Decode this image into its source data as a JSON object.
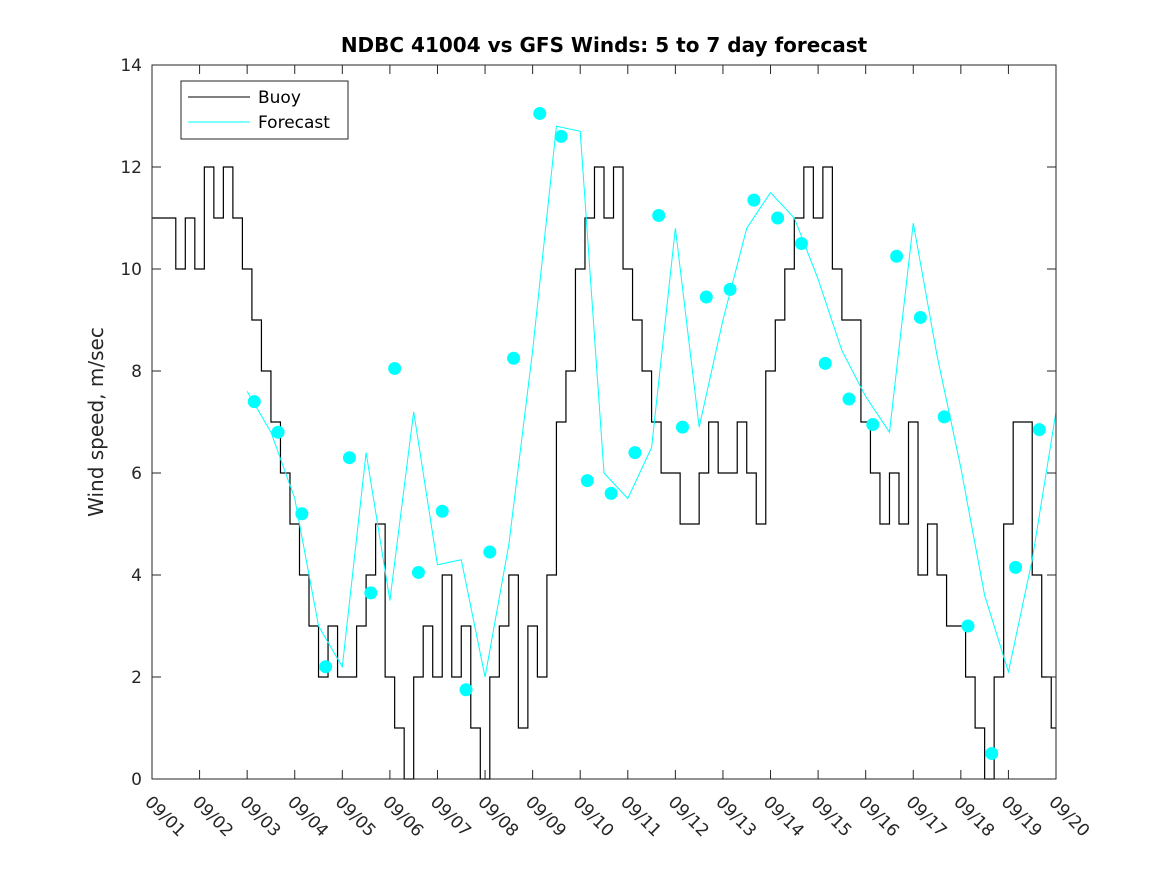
{
  "chart_data": {
    "type": "line",
    "title": "NDBC 41004 vs GFS Winds: 5 to 7 day forecast",
    "xlabel": "",
    "ylabel": "Wind speed, m/sec",
    "ylim": [
      0,
      14
    ],
    "yticks": [
      0,
      2,
      4,
      6,
      8,
      10,
      12,
      14
    ],
    "xlim": [
      0,
      19
    ],
    "xtick_labels": [
      "09/01",
      "09/02",
      "09/03",
      "09/04",
      "09/05",
      "09/06",
      "09/07",
      "09/08",
      "09/09",
      "09/10",
      "09/11",
      "09/12",
      "09/13",
      "09/14",
      "09/15",
      "09/16",
      "09/17",
      "09/18",
      "09/19",
      "09/20"
    ],
    "legend": {
      "location": "top-left",
      "entries": [
        "Buoy",
        "Forecast"
      ]
    },
    "colors": {
      "buoy": "#000000",
      "forecast": "#00FFFF",
      "markers": "#00FFFF"
    },
    "series": [
      {
        "name": "Buoy",
        "x": [
          0.0,
          0.1,
          0.3,
          0.5,
          0.7,
          0.9,
          1.1,
          1.3,
          1.5,
          1.7,
          1.9,
          2.1,
          2.3,
          2.5,
          2.7,
          2.9,
          3.1,
          3.3,
          3.5,
          3.7,
          3.9,
          4.1,
          4.3,
          4.5,
          4.7,
          4.9,
          5.1,
          5.3,
          5.5,
          5.7,
          5.9,
          6.1,
          6.3,
          6.5,
          6.7,
          6.9,
          7.1,
          7.3,
          7.5,
          7.7,
          7.9,
          8.1,
          8.3,
          8.5,
          8.7,
          8.9,
          9.1,
          9.3,
          9.5,
          9.7,
          9.9,
          10.1,
          10.3,
          10.5,
          10.7,
          10.9,
          11.1,
          11.3,
          11.5,
          11.7,
          11.9,
          12.1,
          12.3,
          12.5,
          12.7,
          12.9,
          13.1,
          13.3,
          13.5,
          13.7,
          13.9,
          14.1,
          14.3,
          14.5,
          14.7,
          14.9,
          15.1,
          15.3,
          15.5,
          15.7,
          15.9,
          16.1,
          16.3,
          16.5,
          16.7,
          16.9,
          17.1,
          17.3,
          17.5,
          17.7,
          17.9,
          18.1,
          18.3,
          18.5,
          18.7,
          18.9
        ],
        "values": [
          11,
          11,
          11,
          10,
          11,
          10,
          12,
          11,
          12,
          11,
          10,
          9,
          8,
          7,
          6,
          5,
          4,
          3,
          2,
          3,
          2,
          2,
          3,
          4,
          5,
          2,
          1,
          0,
          2,
          3,
          2,
          4,
          2,
          3,
          1,
          0,
          2,
          3,
          4,
          1,
          3,
          2,
          4,
          7,
          8,
          10,
          11,
          12,
          11,
          12,
          10,
          9,
          8,
          7,
          6,
          6,
          5,
          5,
          6,
          7,
          6,
          6,
          7,
          6,
          5,
          8,
          9,
          10,
          11,
          12,
          11,
          12,
          10,
          9,
          9,
          7,
          6,
          5,
          6,
          5,
          7,
          4,
          5,
          4,
          3,
          3,
          2,
          1,
          0,
          2,
          5,
          7,
          7,
          4,
          2,
          1
        ]
      },
      {
        "name": "Forecast",
        "x": [
          2.0,
          2.5,
          3.0,
          3.5,
          4.0,
          4.5,
          5.0,
          5.5,
          6.0,
          6.5,
          7.0,
          7.5,
          8.0,
          8.5,
          9.0,
          9.5,
          10.0,
          10.5,
          11.0,
          11.5,
          12.0,
          12.5,
          13.0,
          13.5,
          14.0,
          14.5,
          15.0,
          15.5,
          16.0,
          16.5,
          17.0,
          17.5,
          18.0,
          18.5,
          19.0
        ],
        "values": [
          7.6,
          6.8,
          5.5,
          3.0,
          2.2,
          6.4,
          3.5,
          7.2,
          4.2,
          4.3,
          2.0,
          4.6,
          8.4,
          12.8,
          12.7,
          6.0,
          5.5,
          6.5,
          10.8,
          6.9,
          9.0,
          10.8,
          11.5,
          11.0,
          9.8,
          8.4,
          7.5,
          6.8,
          10.9,
          8.3,
          6.1,
          3.6,
          2.1,
          4.3,
          7.2
        ]
      },
      {
        "name": "Forecast markers",
        "x": [
          2.15,
          2.65,
          3.15,
          3.65,
          4.15,
          4.6,
          5.1,
          5.6,
          6.1,
          6.6,
          7.1,
          7.6,
          8.15,
          8.6,
          9.15,
          9.65,
          10.15,
          10.65,
          11.15,
          11.65,
          12.15,
          12.65,
          13.15,
          13.65,
          14.15,
          14.65,
          15.15,
          15.65,
          16.15,
          16.65,
          17.15,
          17.65,
          18.15,
          18.65
        ],
        "values": [
          7.4,
          6.8,
          5.2,
          2.2,
          6.3,
          3.65,
          8.05,
          4.05,
          5.25,
          1.75,
          4.45,
          8.25,
          13.05,
          12.6,
          5.85,
          5.6,
          6.4,
          11.05,
          6.9,
          9.45,
          9.6,
          11.35,
          11.0,
          10.5,
          8.15,
          7.45,
          6.95,
          10.25,
          9.05,
          7.1,
          3.0,
          0.5,
          4.15,
          6.85
        ]
      }
    ]
  }
}
